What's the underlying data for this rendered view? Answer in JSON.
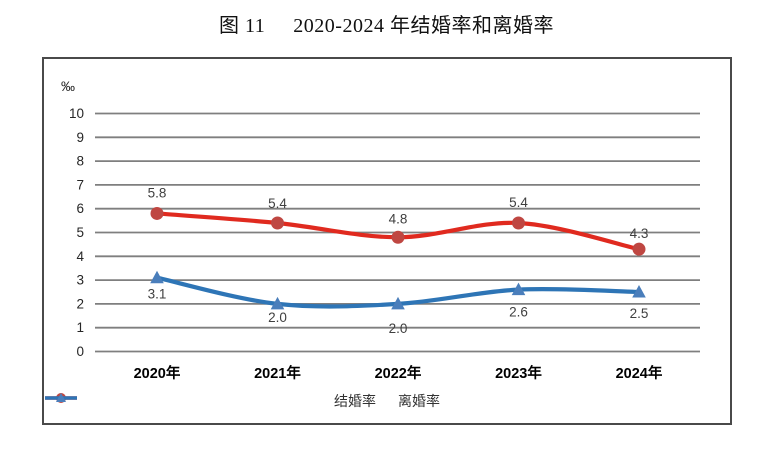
{
  "title": {
    "prefix": "图 11",
    "text": "2020-2024 年结婚率和离婚率"
  },
  "chart_data": {
    "type": "line",
    "title": "图 11  2020-2024 年结婚率和离婚率",
    "categories": [
      "2020年",
      "2021年",
      "2022年",
      "2023年",
      "2024年"
    ],
    "series": [
      {
        "name": "结婚率",
        "values": [
          5.8,
          5.4,
          4.8,
          5.4,
          4.3
        ],
        "labels": [
          "5.8",
          "5.4",
          "4.8",
          "5.4",
          "4.3"
        ],
        "color": "#e02a1f",
        "marker_color": "#bf4742",
        "marker": "circle",
        "label_side": "above",
        "label_dy": [
          -16,
          -15,
          -14,
          -16,
          -11
        ]
      },
      {
        "name": "离婚率",
        "values": [
          3.1,
          2.0,
          2.0,
          2.6,
          2.5
        ],
        "labels": [
          "3.1",
          "2.0",
          "2.0",
          "2.6",
          "2.5"
        ],
        "color": "#2e75b6",
        "marker_color": "#4a7ebb",
        "marker": "triangle",
        "label_side": "below",
        "label_dy": [
          21,
          18,
          29,
          27,
          26
        ]
      }
    ],
    "xlabel": "",
    "ylabel": "‰",
    "ylim": [
      0,
      10
    ],
    "yticks": [
      0,
      1,
      2,
      3,
      4,
      5,
      6,
      7,
      8,
      9,
      10
    ],
    "grid": true,
    "gridline_color": "#7f7f7f",
    "tick_label_color": "#262626",
    "data_label_color": "#3f3f3f",
    "axis_label_color": "#000000",
    "legend_position": "bottom",
    "smooth_lines": true
  }
}
